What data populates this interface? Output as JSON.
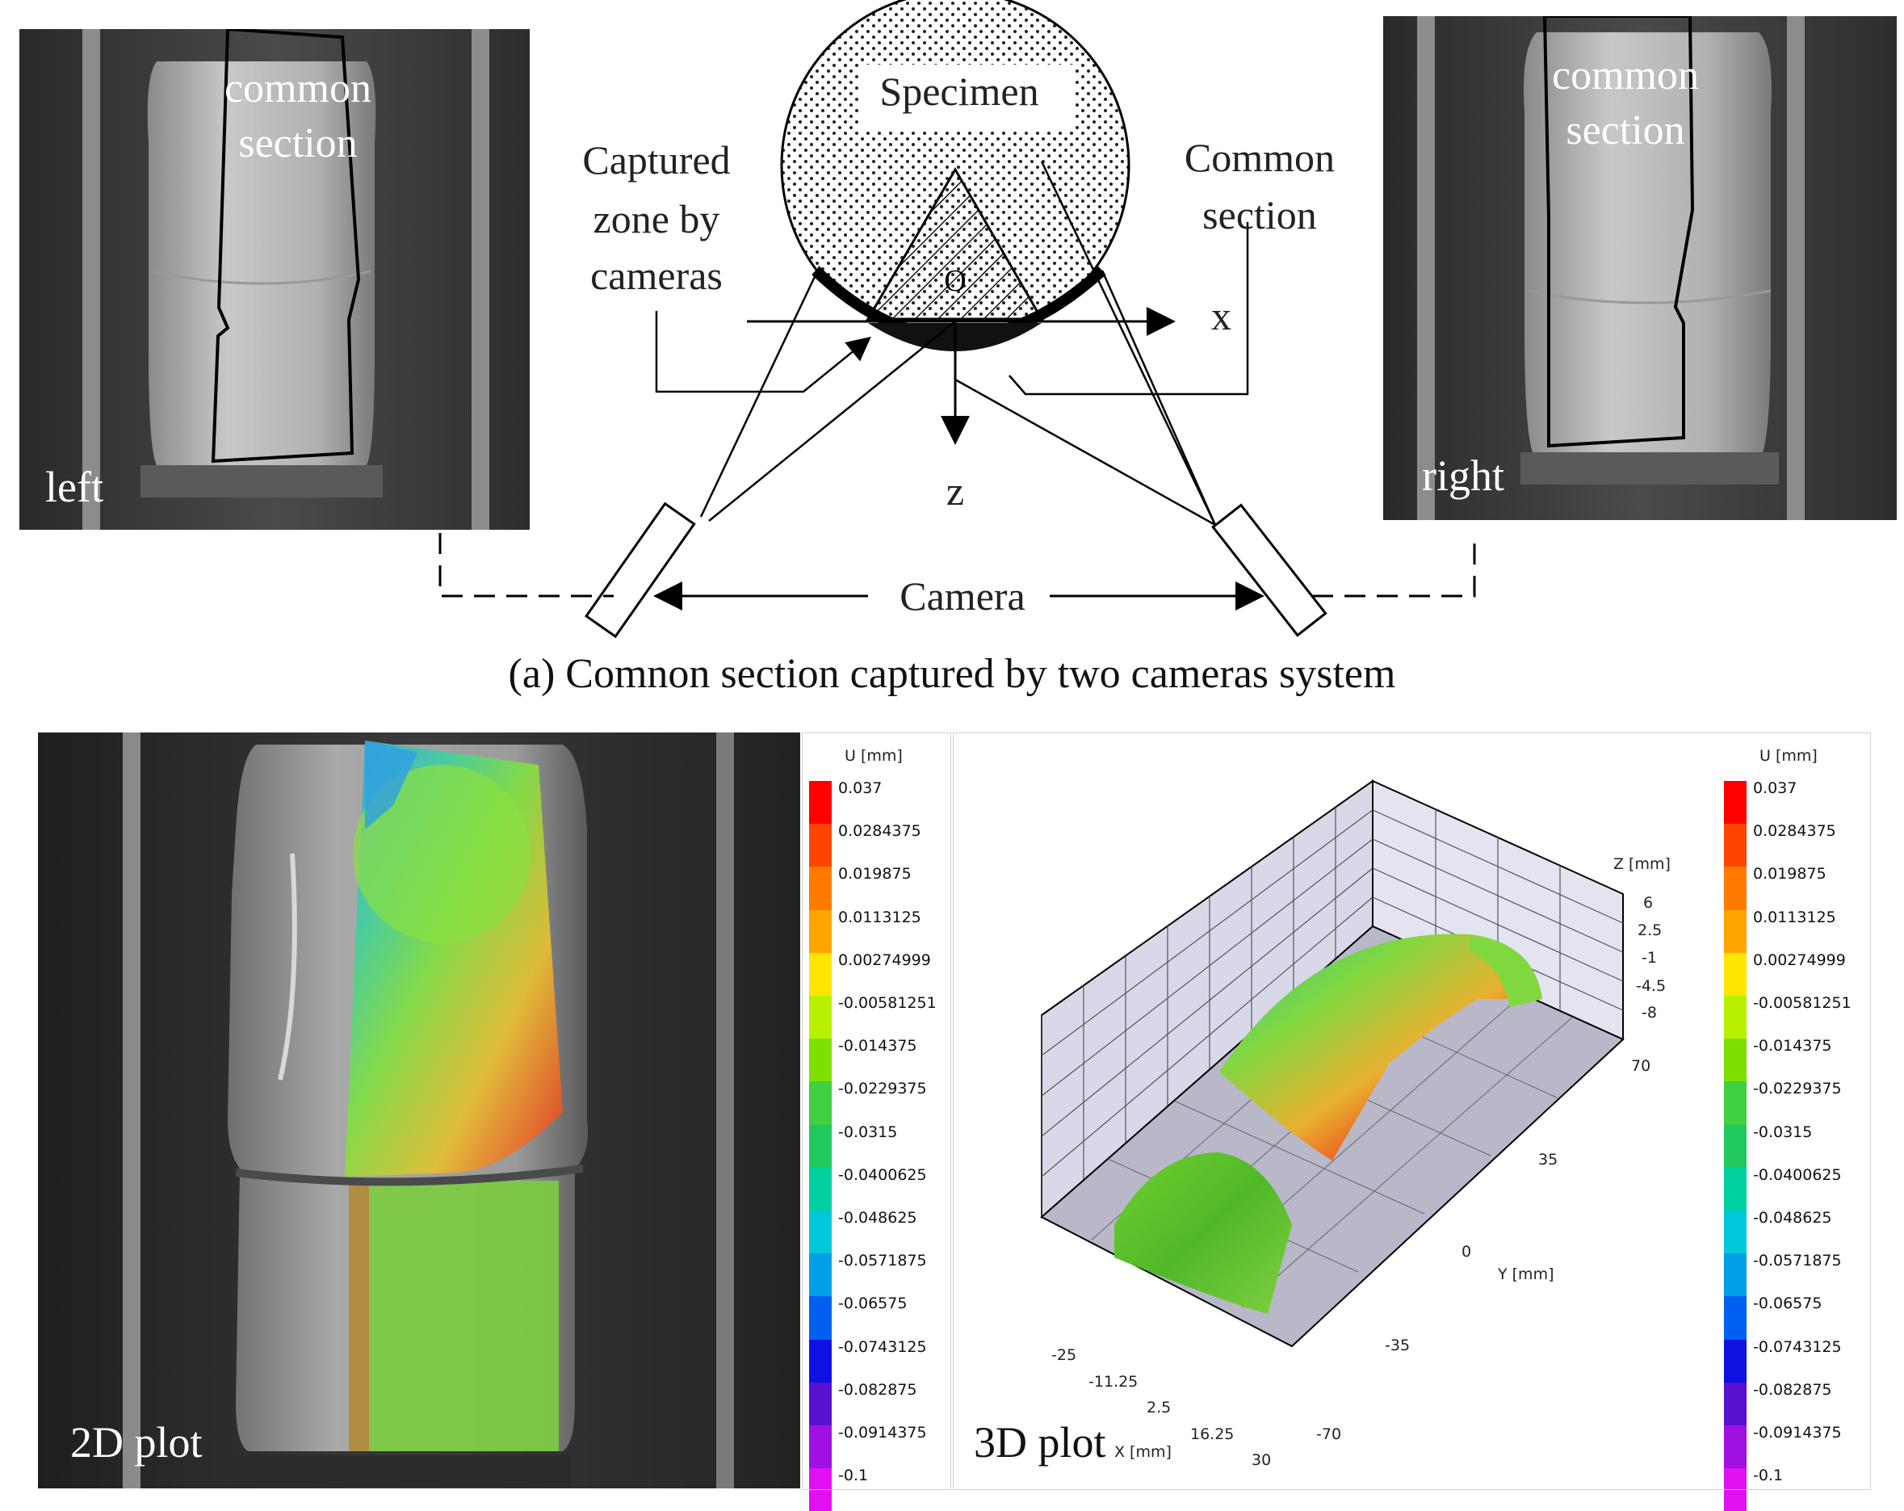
{
  "panel_a": {
    "left_photo": {
      "overlay_line1": "common",
      "overlay_line2": "section",
      "corner_label": "left"
    },
    "right_photo": {
      "overlay_line1": "common",
      "overlay_line2": "section",
      "corner_label": "right"
    },
    "diagram": {
      "specimen": "Specimen",
      "captured_line1": "Captured",
      "captured_line2": "zone by",
      "captured_line3": "cameras",
      "common_line1": "Common",
      "common_line2": "section",
      "origin": "O",
      "x_axis": "x",
      "z_axis": "z",
      "camera": "Camera"
    },
    "caption": "(a) Comnon section captured by two cameras system"
  },
  "panel_b": {
    "plot2d_label": "2D plot",
    "plot3d_label": "3D plot",
    "colorbar": {
      "title": "U [mm]",
      "ticks": [
        "0.037",
        "0.0284375",
        "0.019875",
        "0.0113125",
        "0.00274999",
        "-0.00581251",
        "-0.014375",
        "-0.0229375",
        "-0.0315",
        "-0.0400625",
        "-0.048625",
        "-0.0571875",
        "-0.06575",
        "-0.0743125",
        "-0.082875",
        "-0.0914375",
        "-0.1"
      ],
      "colors": [
        "#ff0000",
        "#ff4400",
        "#ff7a00",
        "#ffa500",
        "#ffe600",
        "#b8f000",
        "#7ee000",
        "#40d040",
        "#20c860",
        "#00d0a0",
        "#00c8d8",
        "#00a0e8",
        "#0060f0",
        "#1010e0",
        "#5a10d0",
        "#a010e0",
        "#e010f0"
      ]
    },
    "plot3d": {
      "z_axis_title": "Z [mm]",
      "z_ticks": [
        "6",
        "2.5",
        "-1",
        "-4.5",
        "-8"
      ],
      "y_axis_title": "Y [mm]",
      "y_ticks": [
        "70",
        "35",
        "0",
        "-35",
        "-70"
      ],
      "x_axis_title": "X [mm]",
      "x_ticks": [
        "-25",
        "-11.25",
        "2.5",
        "16.25",
        "30"
      ]
    }
  }
}
